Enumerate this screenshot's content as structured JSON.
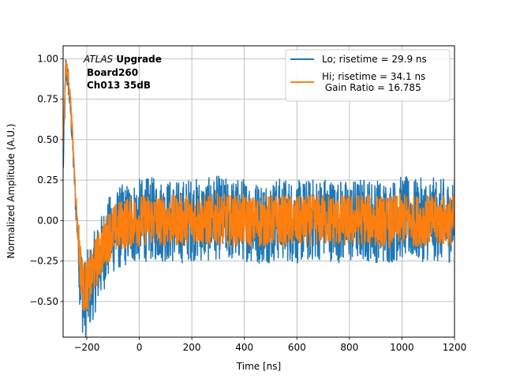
{
  "chart_data": {
    "type": "line",
    "title": "",
    "xlabel": "Time [ns]",
    "ylabel": "Normalized Amplitude (A.U.)",
    "xlim": [
      -290,
      1200
    ],
    "ylim": [
      -0.72,
      1.08
    ],
    "grid": true,
    "legend_position": "upper right",
    "x_ticks": [
      {
        "value": -200,
        "label": "−200"
      },
      {
        "value": 0,
        "label": "0"
      },
      {
        "value": 200,
        "label": "200"
      },
      {
        "value": 400,
        "label": "400"
      },
      {
        "value": 600,
        "label": "600"
      },
      {
        "value": 800,
        "label": "800"
      },
      {
        "value": 1000,
        "label": "1000"
      },
      {
        "value": 1200,
        "label": "1200"
      }
    ],
    "y_ticks": [
      {
        "value": -0.5,
        "label": "−0.50"
      },
      {
        "value": -0.25,
        "label": "−0.25"
      },
      {
        "value": 0.0,
        "label": "0.00"
      },
      {
        "value": 0.25,
        "label": "0.25"
      },
      {
        "value": 0.5,
        "label": "0.50"
      },
      {
        "value": 0.75,
        "label": "0.75"
      },
      {
        "value": 1.0,
        "label": "1.00"
      }
    ],
    "annotation": {
      "atlas": "ATLAS",
      "upgrade": "Upgrade",
      "line2": "Board260",
      "line3": "Ch013 35dB"
    },
    "series": [
      {
        "name": "Lo; risetime = 29.9 ns",
        "color": "#1f77b4",
        "x": [
          -290,
          -280,
          -270,
          -260,
          -250,
          -240,
          -230,
          -220,
          -210,
          -200,
          -190,
          -180,
          -170,
          -160,
          -150,
          -140,
          -130,
          -120,
          -110,
          -100,
          -80,
          -60,
          -40,
          -20,
          0,
          50,
          100,
          150,
          200,
          250,
          300,
          350,
          400,
          450,
          500,
          550,
          600,
          650,
          700,
          750,
          800,
          850,
          900,
          950,
          1000,
          1050,
          1100,
          1150,
          1200
        ],
        "y": [
          0.3,
          0.95,
          0.85,
          0.65,
          0.35,
          0.05,
          -0.2,
          -0.4,
          -0.5,
          -0.45,
          -0.42,
          -0.38,
          -0.32,
          -0.28,
          -0.25,
          -0.2,
          -0.15,
          -0.12,
          -0.1,
          -0.07,
          -0.05,
          -0.03,
          -0.02,
          -0.01,
          0.0,
          0.01,
          0.0,
          -0.01,
          0.01,
          0.0,
          0.02,
          0.0,
          0.01,
          -0.01,
          0.0,
          0.01,
          -0.01,
          0.0,
          0.02,
          0.0,
          -0.01,
          0.01,
          0.0,
          -0.01,
          0.02,
          0.0,
          0.01,
          0.0,
          0.0
        ],
        "noise_amplitude": 0.26
      },
      {
        "name": "Hi; risetime = 34.1 ns\n Gain Ratio = 16.785",
        "color": "#ff7f0e",
        "x": [
          -290,
          -280,
          -270,
          -260,
          -250,
          -240,
          -230,
          -220,
          -210,
          -200,
          -190,
          -180,
          -170,
          -160,
          -150,
          -140,
          -130,
          -120,
          -110,
          -100,
          -80,
          -60,
          -40,
          -20,
          0,
          50,
          100,
          150,
          200,
          250,
          300,
          350,
          400,
          450,
          500,
          550,
          600,
          650,
          700,
          750,
          800,
          850,
          900,
          950,
          1000,
          1050,
          1100,
          1150,
          1200
        ],
        "y": [
          0.5,
          0.95,
          0.88,
          0.7,
          0.4,
          0.1,
          -0.15,
          -0.35,
          -0.42,
          -0.4,
          -0.38,
          -0.33,
          -0.28,
          -0.24,
          -0.2,
          -0.17,
          -0.13,
          -0.1,
          -0.08,
          -0.06,
          -0.04,
          -0.02,
          -0.01,
          0.0,
          0.0,
          0.01,
          0.0,
          0.0,
          0.01,
          0.0,
          0.01,
          0.0,
          0.0,
          -0.01,
          0.0,
          0.0,
          -0.01,
          0.0,
          0.01,
          0.0,
          0.0,
          0.01,
          0.0,
          -0.01,
          0.01,
          0.0,
          0.0,
          0.0,
          0.0
        ],
        "noise_amplitude": 0.16
      }
    ]
  }
}
